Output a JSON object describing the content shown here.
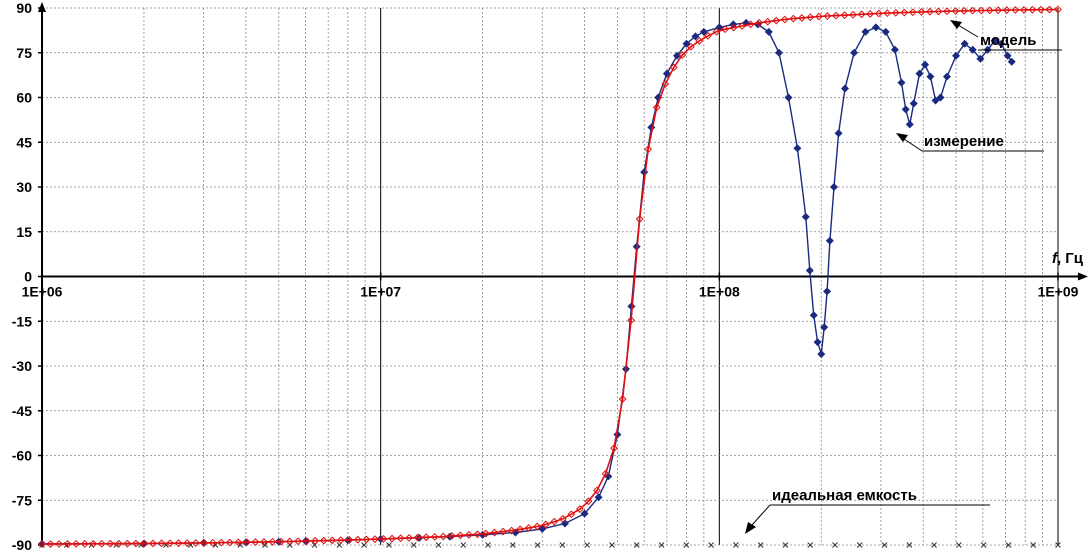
{
  "chart_data": {
    "type": "line",
    "xscale": "log",
    "xlim": [
      1000000.0,
      1000000000.0
    ],
    "ylim": [
      -90,
      90
    ],
    "ytick_step": 15,
    "grid": true,
    "yticks": [
      "90",
      "75",
      "60",
      "45",
      "30",
      "15",
      "0",
      "-15",
      "-30",
      "-45",
      "-60",
      "-75",
      "-90"
    ],
    "xticks": [
      {
        "value": 1000000.0,
        "label": "1E+06"
      },
      {
        "value": 10000000.0,
        "label": "1E+07"
      },
      {
        "value": 100000000.0,
        "label": "1E+08"
      },
      {
        "value": 1000000000.0,
        "label": "1E+09"
      }
    ],
    "x_axis_label_italic": "f",
    "x_axis_label_rest": ", Гц",
    "annotations": {
      "model": "модель",
      "measurement": "измерение",
      "ideal": "идеальная емкость"
    },
    "colors": {
      "measurement": "#1a2a80",
      "model": "#e01010",
      "ideal": "#333333",
      "grid": "#888888",
      "axis": "#000000"
    },
    "series": [
      {
        "key": "measurement",
        "marker": "filled-diamond",
        "points": [
          [
            1000000.0,
            -89.6
          ],
          [
            2000000.0,
            -89.5
          ],
          [
            3000000.0,
            -89.3
          ],
          [
            4000000.0,
            -89.1
          ],
          [
            5000000.0,
            -88.9
          ],
          [
            6000000.0,
            -88.7
          ],
          [
            8000000.0,
            -88.4
          ],
          [
            10000000.0,
            -88.0
          ],
          [
            13000000.0,
            -87.6
          ],
          [
            16000000.0,
            -87.2
          ],
          [
            20000000.0,
            -86.6
          ],
          [
            25000000.0,
            -85.8
          ],
          [
            30000000.0,
            -84.6
          ],
          [
            35000000.0,
            -82.8
          ],
          [
            40000000.0,
            -79.5
          ],
          [
            44000000.0,
            -74.0
          ],
          [
            47000000.0,
            -67.0
          ],
          [
            50000000.0,
            -53.0
          ],
          [
            53000000.0,
            -31.0
          ],
          [
            55000000.0,
            -10.0
          ],
          [
            57000000.0,
            10.0
          ],
          [
            60000000.0,
            35.0
          ],
          [
            63000000.0,
            50.0
          ],
          [
            66000000.0,
            60.0
          ],
          [
            70000000.0,
            68.0
          ],
          [
            75000000.0,
            74.0
          ],
          [
            80000000.0,
            78.0
          ],
          [
            85000000.0,
            80.5
          ],
          [
            90000000.0,
            82.0
          ],
          [
            100000000.0,
            83.5
          ],
          [
            110000000.0,
            84.5
          ],
          [
            120000000.0,
            85.0
          ],
          [
            130000000.0,
            84.5
          ],
          [
            140000000.0,
            82.0
          ],
          [
            150000000.0,
            75.0
          ],
          [
            160000000.0,
            60.0
          ],
          [
            170000000.0,
            43.0
          ],
          [
            180000000.0,
            20.0
          ],
          [
            185000000.0,
            2.0
          ],
          [
            190000000.0,
            -13.0
          ],
          [
            195000000.0,
            -22.0
          ],
          [
            200000000.0,
            -26.0
          ],
          [
            204000000.0,
            -17.0
          ],
          [
            208000000.0,
            -5.0
          ],
          [
            212000000.0,
            12.0
          ],
          [
            218000000.0,
            30.0
          ],
          [
            225000000.0,
            48.0
          ],
          [
            235000000.0,
            63.0
          ],
          [
            250000000.0,
            75.0
          ],
          [
            270000000.0,
            82.0
          ],
          [
            290000000.0,
            83.5
          ],
          [
            310000000.0,
            82.0
          ],
          [
            330000000.0,
            76.0
          ],
          [
            345000000.0,
            65.0
          ],
          [
            355000000.0,
            56.0
          ],
          [
            365000000.0,
            51.0
          ],
          [
            375000000.0,
            58.0
          ],
          [
            390000000.0,
            68.0
          ],
          [
            405000000.0,
            71.0
          ],
          [
            420000000.0,
            67.0
          ],
          [
            435000000.0,
            59.0
          ],
          [
            450000000.0,
            60.0
          ],
          [
            470000000.0,
            67.0
          ],
          [
            500000000.0,
            74.0
          ],
          [
            530000000.0,
            78.0
          ],
          [
            560000000.0,
            76.0
          ],
          [
            590000000.0,
            73.0
          ],
          [
            620000000.0,
            76.0
          ],
          [
            650000000.0,
            79.0
          ],
          [
            680000000.0,
            78.0
          ],
          [
            710000000.0,
            74.0
          ],
          [
            730000000.0,
            72.0
          ]
        ]
      },
      {
        "key": "model",
        "marker": "hollow-diamond",
        "points": [
          [
            1000000.0,
            -89.7
          ],
          [
            2000000.0,
            -89.5
          ],
          [
            3000000.0,
            -89.3
          ],
          [
            5000000.0,
            -88.9
          ],
          [
            7000000.0,
            -88.5
          ],
          [
            10000000.0,
            -88.0
          ],
          [
            15000000.0,
            -87.2
          ],
          [
            20000000.0,
            -86.3
          ],
          [
            25000000.0,
            -85.0
          ],
          [
            30000000.0,
            -83.5
          ],
          [
            35000000.0,
            -81.0
          ],
          [
            40000000.0,
            -77.0
          ],
          [
            44000000.0,
            -71.0
          ],
          [
            48000000.0,
            -62.0
          ],
          [
            51000000.0,
            -47.0
          ],
          [
            54000000.0,
            -25.0
          ],
          [
            56000000.0,
            -2.0
          ],
          [
            58000000.0,
            18.0
          ],
          [
            61000000.0,
            40.0
          ],
          [
            65000000.0,
            56.0
          ],
          [
            70000000.0,
            66.0
          ],
          [
            75000000.0,
            72.0
          ],
          [
            80000000.0,
            76.0
          ],
          [
            90000000.0,
            80.0
          ],
          [
            100000000.0,
            82.5
          ],
          [
            130000000.0,
            85.0
          ],
          [
            160000000.0,
            86.3
          ],
          [
            200000000.0,
            87.2
          ],
          [
            300000000.0,
            88.2
          ],
          [
            400000000.0,
            88.7
          ],
          [
            500000000.0,
            89.0
          ],
          [
            700000000.0,
            89.3
          ],
          [
            1000000000.0,
            89.5
          ]
        ]
      },
      {
        "key": "ideal",
        "marker": "cross",
        "points": [
          [
            1000000.0,
            -90
          ],
          [
            10000000.0,
            -90
          ],
          [
            100000000.0,
            -90
          ],
          [
            1000000000.0,
            -90
          ]
        ]
      }
    ]
  }
}
